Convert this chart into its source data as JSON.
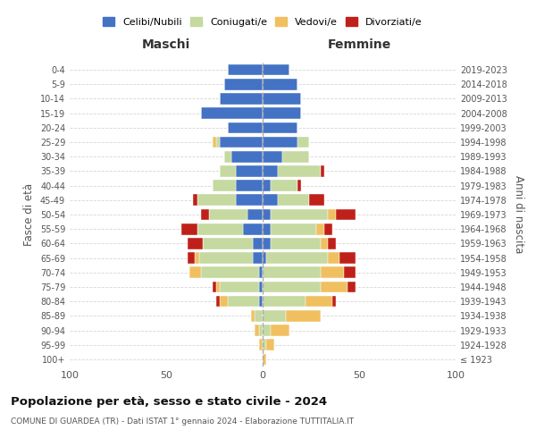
{
  "age_groups": [
    "100+",
    "95-99",
    "90-94",
    "85-89",
    "80-84",
    "75-79",
    "70-74",
    "65-69",
    "60-64",
    "55-59",
    "50-54",
    "45-49",
    "40-44",
    "35-39",
    "30-34",
    "25-29",
    "20-24",
    "15-19",
    "10-14",
    "5-9",
    "0-4"
  ],
  "birth_years": [
    "≤ 1923",
    "1924-1928",
    "1929-1933",
    "1934-1938",
    "1939-1943",
    "1944-1948",
    "1949-1953",
    "1954-1958",
    "1959-1963",
    "1964-1968",
    "1969-1973",
    "1974-1978",
    "1979-1983",
    "1984-1988",
    "1989-1993",
    "1994-1998",
    "1999-2003",
    "2004-2008",
    "2009-2013",
    "2014-2018",
    "2019-2023"
  ],
  "maschi": {
    "celibi": [
      0,
      0,
      0,
      0,
      2,
      2,
      2,
      5,
      5,
      10,
      8,
      14,
      14,
      14,
      16,
      22,
      18,
      32,
      22,
      20,
      18
    ],
    "coniugati": [
      0,
      0,
      2,
      4,
      16,
      20,
      30,
      28,
      26,
      24,
      20,
      20,
      12,
      8,
      4,
      2,
      0,
      0,
      0,
      0,
      0
    ],
    "vedovi": [
      0,
      2,
      2,
      2,
      4,
      2,
      6,
      2,
      0,
      0,
      0,
      0,
      0,
      0,
      0,
      2,
      0,
      0,
      0,
      0,
      0
    ],
    "divorziati": [
      0,
      0,
      0,
      0,
      2,
      2,
      0,
      4,
      8,
      8,
      4,
      2,
      0,
      0,
      0,
      0,
      0,
      0,
      0,
      0,
      0
    ]
  },
  "femmine": {
    "nubili": [
      0,
      0,
      0,
      0,
      0,
      0,
      0,
      2,
      4,
      4,
      4,
      8,
      4,
      8,
      10,
      18,
      18,
      20,
      20,
      18,
      14
    ],
    "coniugate": [
      0,
      2,
      4,
      12,
      22,
      30,
      30,
      32,
      26,
      24,
      30,
      16,
      14,
      22,
      14,
      6,
      0,
      0,
      0,
      0,
      0
    ],
    "vedove": [
      2,
      4,
      10,
      18,
      14,
      14,
      12,
      6,
      4,
      4,
      4,
      0,
      0,
      0,
      0,
      0,
      0,
      0,
      0,
      0,
      0
    ],
    "divorziate": [
      0,
      0,
      0,
      0,
      2,
      4,
      6,
      8,
      4,
      4,
      10,
      8,
      2,
      2,
      0,
      0,
      0,
      0,
      0,
      0,
      0
    ]
  },
  "colors": {
    "celibi": "#4472c4",
    "coniugati": "#c5d9a0",
    "vedovi": "#f0c060",
    "divorziati": "#c0201a"
  },
  "xlim": 100,
  "title": "Popolazione per età, sesso e stato civile - 2024",
  "subtitle": "COMUNE DI GUARDEA (TR) - Dati ISTAT 1° gennaio 2024 - Elaborazione TUTTITALIA.IT",
  "ylabel_left": "Fasce di età",
  "ylabel_right": "Anni di nascita",
  "xlabel_left": "Maschi",
  "xlabel_right": "Femmine",
  "legend_labels": [
    "Celibi/Nubili",
    "Coniugati/e",
    "Vedovi/e",
    "Divorziati/e"
  ],
  "background_color": "#ffffff",
  "grid_color": "#cccccc"
}
